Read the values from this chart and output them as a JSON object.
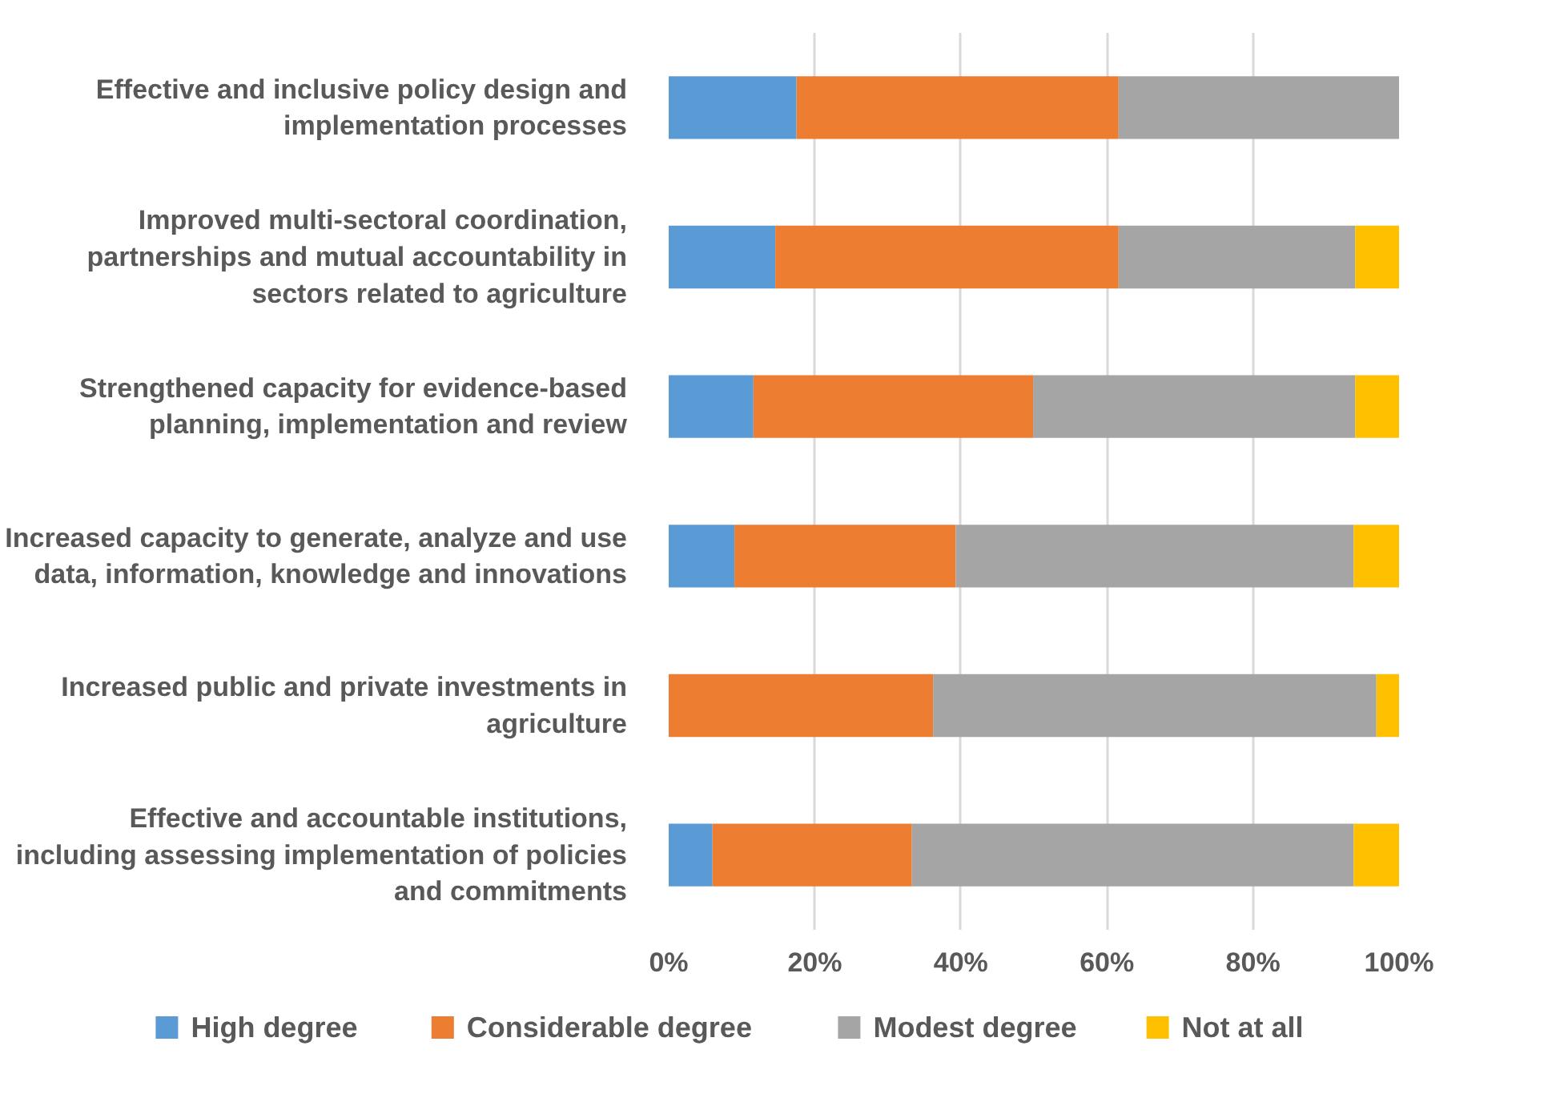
{
  "chart_data": {
    "type": "bar",
    "orientation": "horizontal",
    "stacked": true,
    "categories": [
      "Effective and inclusive policy design and implementation processes",
      "Improved multi-sectoral coordination, partnerships and mutual accountability in sectors related to agriculture",
      "Strengthened capacity for evidence-based planning, implementation and review",
      "Increased capacity to generate, analyze and use data, information, knowledge and innovations",
      "Increased public and private investments in agriculture",
      "Effective and accountable institutions, including assessing implementation of policies and commitments"
    ],
    "series": [
      {
        "name": "High degree",
        "color": "#5b9bd5",
        "values": [
          17.5,
          14.6,
          11.6,
          9.0,
          0,
          6.0
        ]
      },
      {
        "name": "Considerable degree",
        "color": "#ed7d31",
        "values": [
          44.1,
          47.0,
          38.3,
          30.3,
          36.2,
          27.3
        ]
      },
      {
        "name": "Modest degree",
        "color": "#a5a5a5",
        "values": [
          38.4,
          32.4,
          44.1,
          54.5,
          60.7,
          60.5
        ]
      },
      {
        "name": "Not at all",
        "color": "#ffc000",
        "values": [
          0,
          6.0,
          6.0,
          6.2,
          3.1,
          6.2
        ]
      }
    ],
    "xlim": [
      0,
      100
    ],
    "xticks": [
      {
        "value": 0,
        "label": "0%"
      },
      {
        "value": 20,
        "label": "20%"
      },
      {
        "value": 40,
        "label": "40%"
      },
      {
        "value": 60,
        "label": "60%"
      },
      {
        "value": 80,
        "label": "80%"
      },
      {
        "value": 100,
        "label": "100%"
      }
    ],
    "grid": "x",
    "legend": "bottom"
  }
}
